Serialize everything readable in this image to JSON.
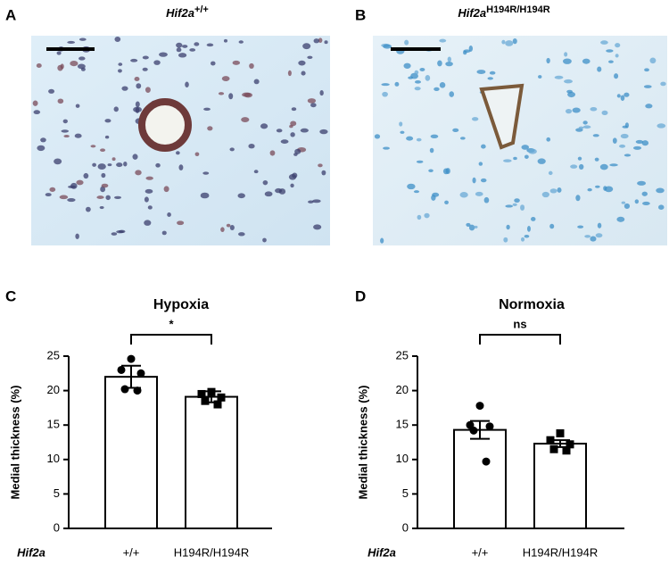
{
  "panels": [
    {
      "label": "A",
      "title": "Hif2a",
      "superscript": "+/+"
    },
    {
      "label": "B",
      "title": "Hif2a",
      "superscript": "H194R/H194R"
    }
  ],
  "chart_data": [
    {
      "type": "bar",
      "panel": "C",
      "title": "Hypoxia",
      "ylabel": "Medial thickness (%)",
      "xlabel": "Hif2a",
      "categories": [
        "+/+",
        "H194R/H194R"
      ],
      "values": [
        22,
        19.1
      ],
      "errors": [
        1.6,
        0.8
      ],
      "points": [
        [
          24.6,
          23.0,
          22.5,
          20.2,
          20.0
        ],
        [
          19.8,
          19.5,
          19.0,
          18.5,
          18.0
        ]
      ],
      "markers": [
        "circle",
        "square"
      ],
      "color": "#000000",
      "ylim": [
        0,
        25
      ],
      "yticks": [
        0,
        5,
        10,
        15,
        20,
        25
      ],
      "annotation": "*"
    },
    {
      "type": "bar",
      "panel": "D",
      "title": "Normoxia",
      "ylabel": "Medial thickness (%)",
      "xlabel": "Hif2a",
      "categories": [
        "+/+",
        "H194R/H194R"
      ],
      "values": [
        14.3,
        12.3
      ],
      "errors": [
        1.3,
        0.5
      ],
      "points": [
        [
          17.8,
          15.0,
          14.8,
          14.2,
          9.7
        ],
        [
          13.8,
          12.8,
          12.2,
          11.5,
          11.3
        ]
      ],
      "markers": [
        "circle",
        "square"
      ],
      "color": "#000000",
      "ylim": [
        0,
        25
      ],
      "yticks": [
        0,
        5,
        10,
        15,
        20,
        25
      ],
      "annotation": "ns"
    }
  ]
}
